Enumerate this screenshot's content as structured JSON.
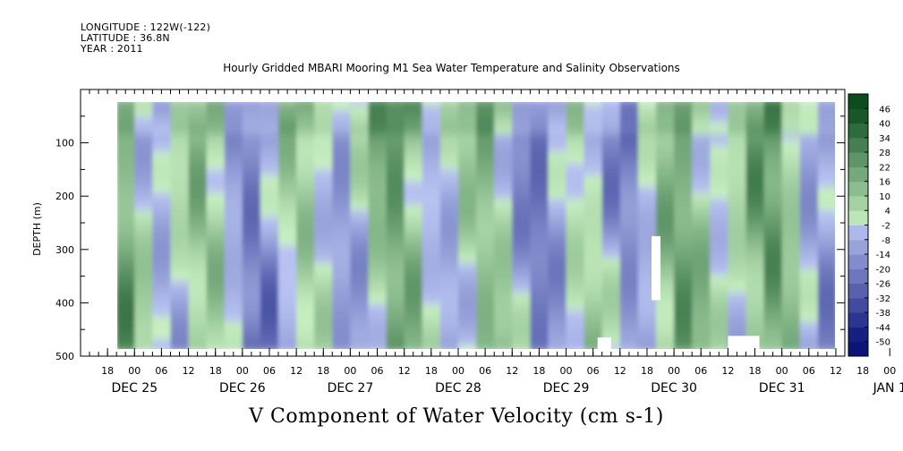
{
  "header": {
    "longitude": "LONGITUDE : 122W(-122)",
    "latitude": "LATITUDE : 36.8N",
    "year": "YEAR : 2011"
  },
  "title": "Hourly Gridded MBARI Mooring M1 Sea Water Temperature and Salinity Observations",
  "bottom_label": "V Component of Water Velocity (cm s-1)",
  "chart_data": {
    "type": "heatmap",
    "title": "Hourly Gridded MBARI Mooring M1 Sea Water Temperature and Salinity Observations",
    "variable": "V Component of Water Velocity (cm s-1)",
    "ylabel": "DEPTH (m)",
    "y_inverted": true,
    "ylim": [
      0,
      500
    ],
    "y_ticks": [
      100,
      200,
      300,
      400,
      500
    ],
    "x_hour_ticks": [
      "18",
      "00",
      "06",
      "12",
      "18",
      "00",
      "06",
      "12",
      "18",
      "00",
      "06",
      "12",
      "18",
      "00",
      "06",
      "12",
      "18",
      "00",
      "06",
      "12",
      "18",
      "00",
      "06",
      "12",
      "18",
      "00",
      "06",
      "12",
      "18",
      "00",
      "06",
      "12"
    ],
    "x_day_labels": [
      "DEC 25",
      "DEC 26",
      "DEC 27",
      "DEC 28",
      "DEC 29",
      "DEC 30",
      "DEC 31",
      "JAN  1"
    ],
    "x_range": [
      "2011-12-25 12:00",
      "2012-01-01 14:00"
    ],
    "data_extent": {
      "x": [
        "2011-12-25 20:00",
        "2012-01-01 13:00"
      ],
      "depth_m": [
        18,
        490
      ]
    },
    "colorbar": {
      "levels": [
        -50,
        -44,
        -38,
        -32,
        -26,
        -20,
        -14,
        -8,
        -2,
        4,
        10,
        16,
        22,
        28,
        34,
        40,
        46
      ],
      "level_labels": [
        "-50",
        "-44",
        "-38",
        "-32",
        "-26",
        "-20",
        "-14",
        "-8",
        "-2",
        "4",
        "10",
        "16",
        "22",
        "28",
        "34",
        "40",
        "46"
      ],
      "low_color": "#0c1478",
      "mid_low_color": "#b9c4f2",
      "mid_high_color": "#c8f0c2",
      "high_color": "#0b4d1f"
    }
  }
}
